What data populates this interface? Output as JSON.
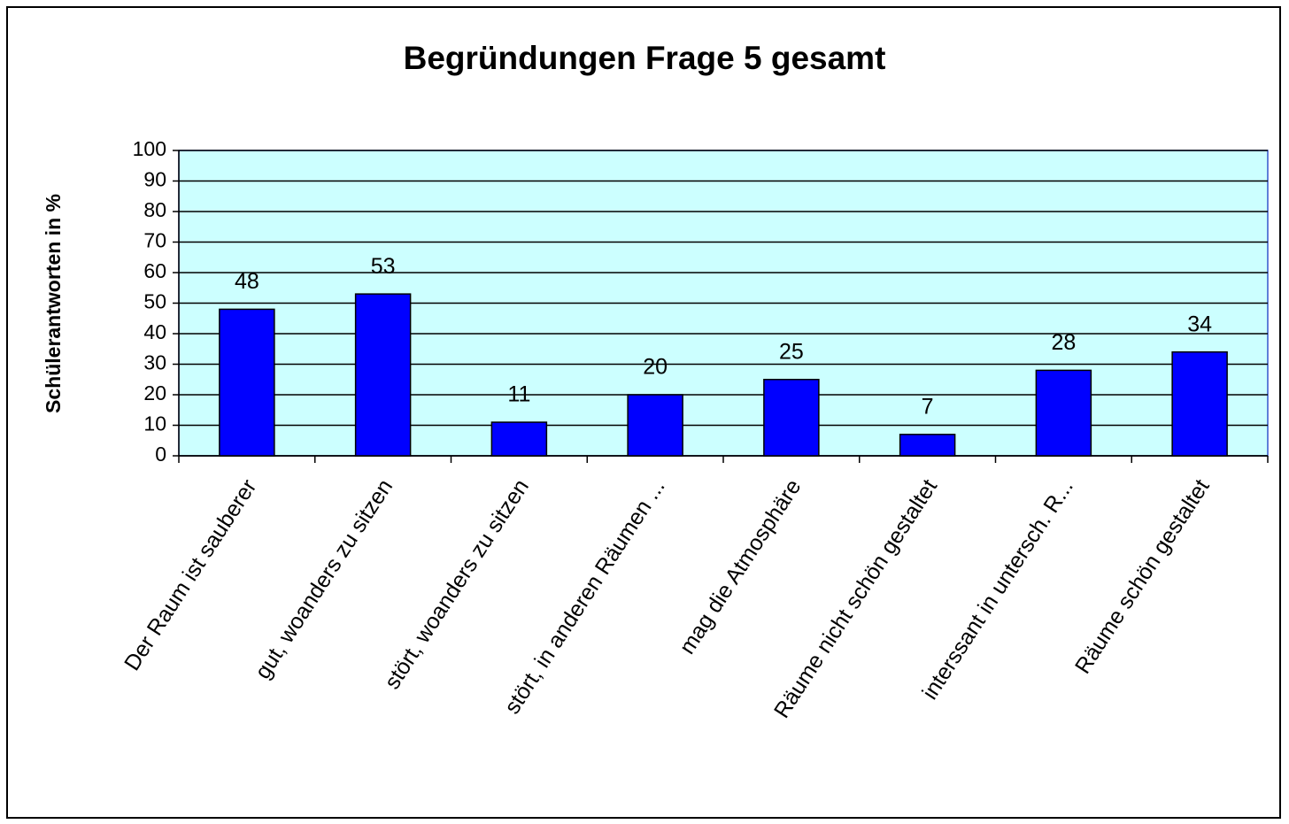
{
  "chart_data": {
    "type": "bar",
    "title": "Begründungen Frage 5 gesamt",
    "y_label": "Schülerantworten in %",
    "categories": [
      "Der Raum ist sauberer",
      "gut, woanders zu sitzen",
      "stört, woanders zu sitzen",
      "stört, in anderen Räumen ...",
      "mag die Atmosphäre",
      "Räume nicht schön gestaltet",
      "interssant in untersch. R...",
      "Räume schön gestaltet"
    ],
    "values": [
      48,
      53,
      11,
      20,
      25,
      7,
      28,
      34
    ],
    "color": "#0000ff",
    "ylim": [
      0,
      100
    ],
    "yticks": [
      0,
      10,
      20,
      30,
      40,
      50,
      60,
      70,
      80,
      90,
      100
    ],
    "grid": true
  }
}
